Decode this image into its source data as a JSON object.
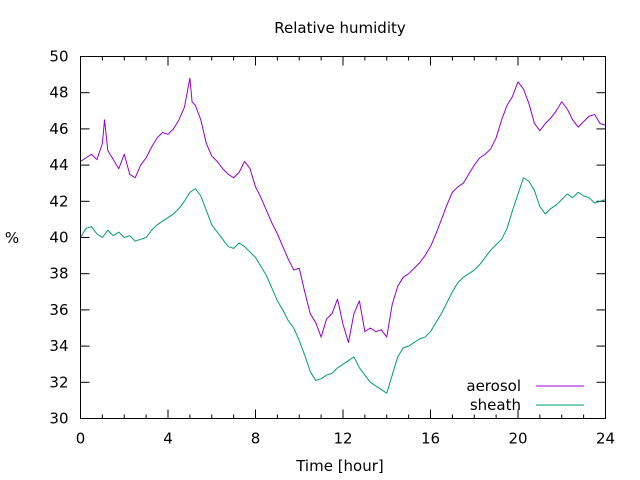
{
  "chart_data": {
    "type": "line",
    "title": "Relative humidity",
    "xlabel": "Time [hour]",
    "ylabel": "%",
    "xlim": [
      0,
      24
    ],
    "ylim": [
      30,
      50
    ],
    "xticks": [
      0,
      4,
      8,
      12,
      16,
      20,
      24
    ],
    "yticks": [
      30,
      32,
      34,
      36,
      38,
      40,
      42,
      44,
      46,
      48,
      50
    ],
    "xtick_labels": [
      "0",
      "4",
      "8",
      "12",
      "16",
      "20",
      "24"
    ],
    "ytick_labels": [
      "30",
      "32",
      "34",
      "36",
      "38",
      "40",
      "42",
      "44",
      "46",
      "48",
      "50"
    ],
    "grid": false,
    "legend_position": "bottom-right",
    "series": [
      {
        "name": "aerosol",
        "color": "#9400d3",
        "x": [
          0,
          0.25,
          0.5,
          0.75,
          1.0,
          1.1,
          1.25,
          1.5,
          1.75,
          2.0,
          2.25,
          2.5,
          2.75,
          3.0,
          3.25,
          3.5,
          3.75,
          4.0,
          4.25,
          4.5,
          4.75,
          5.0,
          5.1,
          5.25,
          5.5,
          5.75,
          6.0,
          6.25,
          6.5,
          6.75,
          7.0,
          7.25,
          7.5,
          7.75,
          8.0,
          8.25,
          8.5,
          8.75,
          9.0,
          9.25,
          9.5,
          9.75,
          10.0,
          10.25,
          10.5,
          10.75,
          11.0,
          11.25,
          11.5,
          11.75,
          12.0,
          12.25,
          12.5,
          12.75,
          13.0,
          13.25,
          13.5,
          13.75,
          14.0,
          14.25,
          14.5,
          14.75,
          15.0,
          15.25,
          15.5,
          15.75,
          16.0,
          16.25,
          16.5,
          16.75,
          17.0,
          17.25,
          17.5,
          17.75,
          18.0,
          18.25,
          18.5,
          18.75,
          19.0,
          19.25,
          19.5,
          19.75,
          20.0,
          20.25,
          20.5,
          20.75,
          21.0,
          21.25,
          21.5,
          21.75,
          22.0,
          22.25,
          22.5,
          22.75,
          23.0,
          23.25,
          23.5,
          23.75,
          24.0
        ],
        "y": [
          44.2,
          44.4,
          44.6,
          44.3,
          45.2,
          46.5,
          44.8,
          44.3,
          43.8,
          44.6,
          43.5,
          43.3,
          44.0,
          44.4,
          45.0,
          45.5,
          45.8,
          45.7,
          46.0,
          46.5,
          47.2,
          48.8,
          47.5,
          47.3,
          46.5,
          45.2,
          44.5,
          44.2,
          43.8,
          43.5,
          43.3,
          43.6,
          44.2,
          43.8,
          42.8,
          42.2,
          41.5,
          40.8,
          40.2,
          39.5,
          38.8,
          38.2,
          38.3,
          37.0,
          35.8,
          35.3,
          34.5,
          35.5,
          35.8,
          36.6,
          35.2,
          34.2,
          35.8,
          36.5,
          34.8,
          35.0,
          34.8,
          34.9,
          34.5,
          36.3,
          37.3,
          37.8,
          38.0,
          38.3,
          38.6,
          39.0,
          39.5,
          40.2,
          41.0,
          41.8,
          42.5,
          42.8,
          43.0,
          43.5,
          44.0,
          44.4,
          44.6,
          44.9,
          45.5,
          46.5,
          47.3,
          47.8,
          48.6,
          48.2,
          47.4,
          46.3,
          45.9,
          46.3,
          46.6,
          47.0,
          47.5,
          47.1,
          46.5,
          46.1,
          46.4,
          46.7,
          46.8,
          46.3,
          46.2
        ]
      },
      {
        "name": "sheath",
        "color": "#009e73",
        "x": [
          0,
          0.25,
          0.5,
          0.75,
          1.0,
          1.25,
          1.5,
          1.75,
          2.0,
          2.25,
          2.5,
          2.75,
          3.0,
          3.25,
          3.5,
          3.75,
          4.0,
          4.25,
          4.5,
          4.75,
          5.0,
          5.25,
          5.5,
          5.75,
          6.0,
          6.25,
          6.5,
          6.75,
          7.0,
          7.25,
          7.5,
          7.75,
          8.0,
          8.25,
          8.5,
          8.75,
          9.0,
          9.25,
          9.5,
          9.75,
          10.0,
          10.25,
          10.5,
          10.75,
          11.0,
          11.25,
          11.5,
          11.75,
          12.0,
          12.25,
          12.5,
          12.75,
          13.0,
          13.25,
          13.5,
          13.75,
          14.0,
          14.25,
          14.5,
          14.75,
          15.0,
          15.25,
          15.5,
          15.75,
          16.0,
          16.25,
          16.5,
          16.75,
          17.0,
          17.25,
          17.5,
          17.75,
          18.0,
          18.25,
          18.5,
          18.75,
          19.0,
          19.25,
          19.5,
          19.75,
          20.0,
          20.25,
          20.5,
          20.75,
          21.0,
          21.25,
          21.5,
          21.75,
          22.0,
          22.25,
          22.5,
          22.75,
          23.0,
          23.25,
          23.5,
          23.75,
          24.0
        ],
        "y": [
          40.0,
          40.5,
          40.6,
          40.2,
          40.0,
          40.4,
          40.1,
          40.3,
          40.0,
          40.1,
          39.8,
          39.9,
          40.0,
          40.4,
          40.7,
          40.9,
          41.1,
          41.3,
          41.6,
          42.0,
          42.5,
          42.7,
          42.3,
          41.5,
          40.7,
          40.3,
          39.9,
          39.5,
          39.4,
          39.7,
          39.5,
          39.2,
          38.9,
          38.4,
          37.9,
          37.2,
          36.5,
          36.0,
          35.4,
          35.0,
          34.3,
          33.5,
          32.6,
          32.1,
          32.2,
          32.4,
          32.5,
          32.8,
          33.0,
          33.2,
          33.4,
          32.8,
          32.4,
          32.0,
          31.8,
          31.6,
          31.4,
          32.4,
          33.4,
          33.9,
          34.0,
          34.2,
          34.4,
          34.5,
          34.8,
          35.3,
          35.8,
          36.4,
          37.0,
          37.5,
          37.8,
          38.0,
          38.2,
          38.5,
          38.9,
          39.3,
          39.6,
          39.9,
          40.5,
          41.5,
          42.4,
          43.3,
          43.1,
          42.6,
          41.7,
          41.3,
          41.6,
          41.8,
          42.1,
          42.4,
          42.2,
          42.5,
          42.3,
          42.2,
          41.9,
          42.0,
          42.1
        ]
      }
    ]
  }
}
